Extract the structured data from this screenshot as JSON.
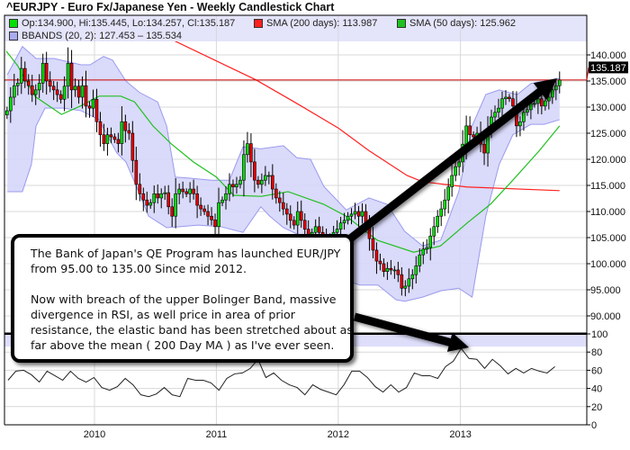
{
  "title": "^EURJPY - Euro Fx/Japanese Yen - Weekly Candlestick Chart",
  "legend": {
    "ohlc": "Op:134.900, Hi:135.445, Lo:134.257, Cl:135.187",
    "sma200": "SMA (200 days): 113.987",
    "sma50": "SMA (50 days): 125.962",
    "bbands": "BBANDS (20, 2): 127.453 – 135.534"
  },
  "annotation": {
    "paragraph1": "The Bank of Japan's QE Program has launched EUR/JPY from 95.00 to 135.00 Since mid 2012.",
    "paragraph2": "Now with breach of the upper Bolinger Band, massive divergence in RSI, as well price in area of prior resistance, the elastic band has been stretched about as far above the mean ( 200 Day MA ) as I've ever seen."
  },
  "colors": {
    "bull": "#00e000",
    "bear": "#e80000",
    "sma200": "#ff2020",
    "sma50": "#20c020",
    "band_fill": "#d6d6fa",
    "band_edge": "#9a9af0",
    "legend_bg": "#e4e4fa",
    "grid": "#d8d8d8"
  },
  "chart_data": [
    {
      "type": "candlestick",
      "title": "^EURJPY - Euro Fx/Japanese Yen - Weekly Candlestick Chart",
      "ylim": [
        86.7,
        147.8
      ],
      "y_ticks": [
        "140.000",
        "135.000",
        "130.000",
        "125.000",
        "120.000",
        "115.000",
        "110.000",
        "105.000",
        "100.000",
        "95.000",
        "90.000"
      ],
      "y_tick_values": [
        140,
        135,
        130,
        125,
        120,
        115,
        110,
        105,
        100,
        95,
        90
      ],
      "x_ticks": [
        "2010",
        "2011",
        "2012",
        "2013"
      ],
      "x_tick_dates": [
        "2010-01-01",
        "2011-01-01",
        "2012-01-01",
        "2013-01-01"
      ],
      "grid": true,
      "last_price": 135.187,
      "last_price_label": "135.187",
      "candles": {
        "first_date": "2009-04-14",
        "last_date": "2013-10-25",
        "close": [
          129.3,
          131.9,
          134.1,
          134.6,
          137.4,
          135,
          134.1,
          132.4,
          133.3,
          134.6,
          138.4,
          135,
          134,
          133.3,
          132.4,
          131.5,
          134,
          138.4,
          133.3,
          134,
          131.9,
          134.1,
          130.2,
          129.8,
          131.5,
          127.2,
          124.7,
          123,
          124.7,
          124.3,
          123.8,
          123,
          127.2,
          125.5,
          125,
          119.8,
          115.2,
          113.4,
          112.2,
          111.2,
          111.7,
          113.4,
          112.6,
          113.4,
          113.6,
          110.9,
          109.1,
          113.4,
          114.3,
          113.8,
          113.4,
          114.3,
          113.4,
          111.2,
          110.5,
          110,
          109.1,
          108.4,
          107.1,
          111.7,
          112.2,
          113.4,
          115.2,
          114.7,
          115.2,
          116,
          120.9,
          123,
          119.5,
          116,
          115.2,
          116,
          116.9,
          116.9,
          114.3,
          112.6,
          111.7,
          110.5,
          109.5,
          108.3,
          107.4,
          110,
          108.3,
          106.6,
          105.3,
          106,
          107.1,
          106,
          104.8,
          105.3,
          105.3,
          106,
          106.6,
          107.8,
          108.3,
          109.1,
          109.5,
          110,
          109.1,
          110,
          107.4,
          104.8,
          102.6,
          100.5,
          100,
          98.5,
          99.1,
          98.8,
          98.8,
          97.9,
          95.3,
          95.7,
          97.1,
          97.9,
          99.6,
          101.7,
          102.8,
          103.1,
          105.3,
          107.1,
          109.1,
          110.5,
          112.2,
          114.7,
          116.9,
          118.6,
          119.5,
          122.9,
          126.4,
          124.7,
          124.3,
          125,
          122.9,
          121.2,
          125.5,
          128.1,
          129,
          129.8,
          131.6,
          131.9,
          131.6,
          130.2,
          126.4,
          127.2,
          129,
          129.5,
          130.7,
          130.7,
          131.6,
          130.2,
          131.2,
          131.9,
          133.3,
          134.1,
          135.187
        ]
      },
      "series": [
        {
          "name": "SMA (200 days)",
          "points": [
            [
              "2010-08-25",
              142.8
            ],
            [
              "2011-04-30",
              135.2
            ],
            [
              "2011-08-30",
              130.7
            ],
            [
              "2012-01-01",
              126
            ],
            [
              "2012-04-01",
              121.7
            ],
            [
              "2012-07-25",
              116.9
            ],
            [
              "2012-09-10",
              115.7
            ],
            [
              "2013-01-20",
              114.7
            ],
            [
              "2013-10-25",
              114.0
            ]
          ]
        },
        {
          "name": "SMA (50 days)",
          "points": [
            [
              "2009-04-12",
              140.7
            ],
            [
              "2009-05-15",
              138
            ],
            [
              "2009-07-08",
              132
            ],
            [
              "2009-09-24",
              128.6
            ],
            [
              "2009-11-20",
              130.2
            ],
            [
              "2010-01-15",
              132.1
            ],
            [
              "2010-03-21",
              132.1
            ],
            [
              "2010-05-01",
              131
            ],
            [
              "2010-06-25",
              126.4
            ],
            [
              "2010-08-18",
              123
            ],
            [
              "2010-10-24",
              119.5
            ],
            [
              "2011-01-01",
              116.6
            ],
            [
              "2011-02-22",
              113.1
            ],
            [
              "2011-05-16",
              112.9
            ],
            [
              "2011-08-04",
              113.8
            ],
            [
              "2011-11-18",
              111.4
            ],
            [
              "2012-01-25",
              109.1
            ],
            [
              "2012-04-27",
              104.5
            ],
            [
              "2012-08-14",
              102.2
            ],
            [
              "2012-11-02",
              103.4
            ],
            [
              "2013-01-23",
              107.9
            ],
            [
              "2013-04-01",
              111.4
            ],
            [
              "2013-06-07",
              116
            ],
            [
              "2013-08-26",
              121.7
            ],
            [
              "2013-10-25",
              126.4
            ]
          ]
        }
      ],
      "bbands": {
        "name": "BBANDS (20, 2)",
        "upper": [
          [
            "2009-04-15",
            136.2
          ],
          [
            "2009-05-30",
            141.6
          ],
          [
            "2009-07-10",
            139.3
          ],
          [
            "2009-09-02",
            139.3
          ],
          [
            "2009-11-22",
            138.1
          ],
          [
            "2009-12-19",
            138.1
          ],
          [
            "2010-01-28",
            139.7
          ],
          [
            "2010-02-24",
            139
          ],
          [
            "2010-04-05",
            135
          ],
          [
            "2010-05-16",
            132.8
          ],
          [
            "2010-07-09",
            131
          ],
          [
            "2010-08-05",
            126.4
          ],
          [
            "2010-08-31",
            116.6
          ],
          [
            "2010-10-11",
            116.4
          ],
          [
            "2010-12-17",
            116
          ],
          [
            "2011-02-09",
            116
          ],
          [
            "2011-03-22",
            122.4
          ],
          [
            "2011-05-14",
            122
          ],
          [
            "2011-07-21",
            122.6
          ],
          [
            "2011-08-30",
            120.3
          ],
          [
            "2011-10-10",
            120
          ],
          [
            "2011-11-19",
            114.8
          ],
          [
            "2012-01-25",
            110.3
          ],
          [
            "2012-04-02",
            112.6
          ],
          [
            "2012-05-26",
            111.4
          ],
          [
            "2012-07-18",
            106.2
          ],
          [
            "2012-09-10",
            103.4
          ],
          [
            "2012-11-03",
            104.5
          ],
          [
            "2012-12-27",
            113.8
          ],
          [
            "2013-02-05",
            126.4
          ],
          [
            "2013-03-18",
            132.4
          ],
          [
            "2013-04-27",
            133.3
          ],
          [
            "2013-06-20",
            132.4
          ],
          [
            "2013-07-31",
            134.5
          ],
          [
            "2013-09-09",
            135
          ],
          [
            "2013-10-25",
            135.5
          ]
        ],
        "lower": [
          [
            "2009-04-15",
            113.8
          ],
          [
            "2009-05-30",
            113.8
          ],
          [
            "2009-06-26",
            119
          ],
          [
            "2009-07-10",
            126.4
          ],
          [
            "2009-08-06",
            129.8
          ],
          [
            "2009-09-29",
            129.8
          ],
          [
            "2009-11-22",
            129.3
          ],
          [
            "2010-01-14",
            127.6
          ],
          [
            "2010-03-09",
            121.2
          ],
          [
            "2010-04-05",
            119.5
          ],
          [
            "2010-05-02",
            115.5
          ],
          [
            "2010-06-12",
            109.1
          ],
          [
            "2010-08-05",
            106.9
          ],
          [
            "2010-09-14",
            107.1
          ],
          [
            "2010-11-07",
            107.4
          ],
          [
            "2011-01-13",
            107.1
          ],
          [
            "2011-03-22",
            106
          ],
          [
            "2011-05-14",
            110.9
          ],
          [
            "2011-06-10",
            109.1
          ],
          [
            "2011-07-21",
            106.9
          ],
          [
            "2011-08-30",
            105.7
          ],
          [
            "2011-11-06",
            100.5
          ],
          [
            "2012-01-12",
            97
          ],
          [
            "2012-03-06",
            95.9
          ],
          [
            "2012-04-29",
            95.9
          ],
          [
            "2012-06-22",
            93.1
          ],
          [
            "2012-07-18",
            92.8
          ],
          [
            "2012-09-10",
            93.6
          ],
          [
            "2012-11-03",
            94.8
          ],
          [
            "2012-12-27",
            95.3
          ],
          [
            "2013-02-05",
            93.6
          ],
          [
            "2013-03-18",
            109.1
          ],
          [
            "2013-04-27",
            119
          ],
          [
            "2013-06-07",
            124.7
          ],
          [
            "2013-07-31",
            126.7
          ],
          [
            "2013-09-09",
            126.7
          ],
          [
            "2013-10-25",
            127.6
          ]
        ]
      }
    },
    {
      "type": "line",
      "name": "RSI",
      "ylim": [
        0,
        100
      ],
      "y_ticks": [
        "100",
        "80",
        "60",
        "40",
        "20",
        "0"
      ],
      "y_tick_values": [
        100,
        80,
        60,
        40,
        20,
        0
      ],
      "shaded_zone": [
        86,
        100
      ],
      "first_date": "2009-04-17",
      "last_date": "2013-10-11",
      "values": [
        49,
        59,
        60,
        55,
        47,
        59,
        54,
        49,
        59,
        51,
        47,
        52,
        41,
        38,
        42,
        51,
        44,
        33,
        31,
        34,
        41,
        33,
        31,
        51,
        49,
        49,
        46,
        38,
        51,
        56,
        57,
        62,
        72,
        52,
        57,
        49,
        44,
        41,
        33,
        44,
        39,
        36,
        33,
        44,
        59,
        59,
        52,
        42,
        36,
        44,
        36,
        41,
        57,
        54,
        54,
        51,
        64,
        70,
        84,
        73,
        72,
        62,
        72,
        65,
        56,
        62,
        57,
        62,
        59,
        57,
        64
      ]
    }
  ]
}
